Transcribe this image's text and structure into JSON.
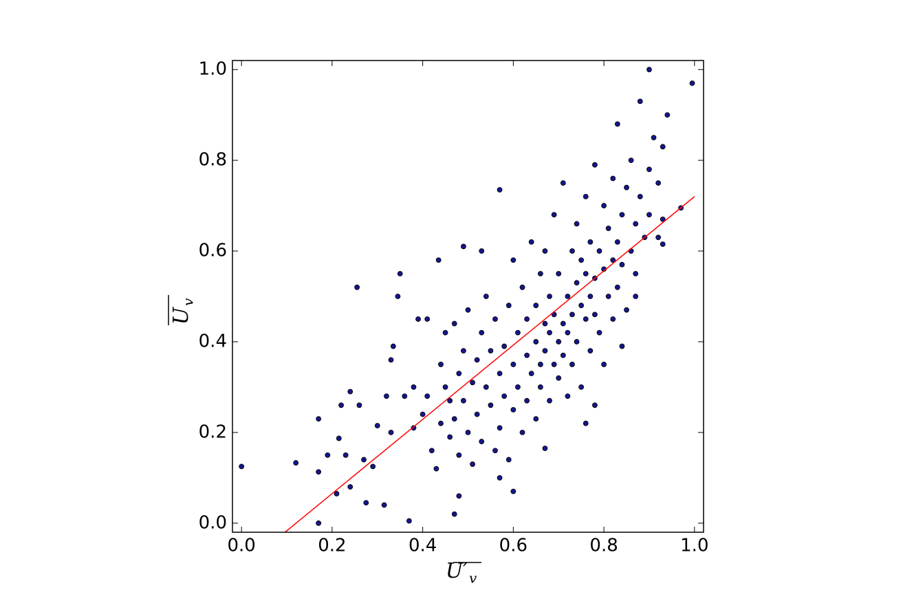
{
  "chart_data": {
    "type": "scatter",
    "xlabel": [
      "U′",
      "v"
    ],
    "ylabel": [
      "U",
      "v"
    ],
    "xlim": [
      -0.02,
      1.02
    ],
    "ylim": [
      -0.02,
      1.02
    ],
    "xticks": [
      {
        "value": 0,
        "label": "0.0"
      },
      0.2,
      0.4,
      0.6,
      0.8,
      {
        "value": 1,
        "label": "1.0"
      }
    ],
    "yticks": [
      {
        "value": 0,
        "label": "0.0"
      },
      0.2,
      0.4,
      0.6,
      0.8,
      {
        "value": 1,
        "label": "1.0"
      }
    ],
    "color": "#16168a",
    "x": [
      0.0,
      0.12,
      0.17,
      0.17,
      0.17,
      0.19,
      0.21,
      0.215,
      0.22,
      0.23,
      0.24,
      0.24,
      0.255,
      0.26,
      0.27,
      0.275,
      0.29,
      0.3,
      0.315,
      0.32,
      0.33,
      0.33,
      0.335,
      0.345,
      0.35,
      0.37,
      0.38,
      0.39,
      0.41,
      0.435,
      0.47,
      0.48,
      0.49,
      0.53,
      0.57,
      0.9,
      0.995,
      0.88,
      0.94,
      0.97,
      0.93,
      0.6,
      0.57,
      0.67,
      0.76,
      0.78,
      0.84,
      0.87,
      0.36,
      0.38,
      0.4,
      0.41,
      0.42,
      0.43,
      0.44,
      0.44,
      0.45,
      0.45,
      0.46,
      0.46,
      0.47,
      0.47,
      0.48,
      0.48,
      0.49,
      0.49,
      0.5,
      0.5,
      0.51,
      0.51,
      0.52,
      0.52,
      0.53,
      0.53,
      0.54,
      0.54,
      0.55,
      0.55,
      0.56,
      0.56,
      0.57,
      0.57,
      0.58,
      0.58,
      0.59,
      0.59,
      0.6,
      0.6,
      0.6,
      0.61,
      0.61,
      0.62,
      0.62,
      0.63,
      0.63,
      0.63,
      0.64,
      0.64,
      0.65,
      0.65,
      0.65,
      0.66,
      0.66,
      0.66,
      0.67,
      0.67,
      0.67,
      0.68,
      0.68,
      0.68,
      0.69,
      0.69,
      0.69,
      0.7,
      0.7,
      0.7,
      0.71,
      0.71,
      0.71,
      0.72,
      0.72,
      0.72,
      0.73,
      0.73,
      0.73,
      0.74,
      0.74,
      0.74,
      0.75,
      0.75,
      0.75,
      0.76,
      0.76,
      0.76,
      0.77,
      0.77,
      0.77,
      0.78,
      0.78,
      0.78,
      0.79,
      0.79,
      0.8,
      0.8,
      0.8,
      0.81,
      0.81,
      0.82,
      0.82,
      0.82,
      0.83,
      0.83,
      0.83,
      0.84,
      0.84,
      0.85,
      0.85,
      0.86,
      0.86,
      0.87,
      0.87,
      0.88,
      0.89,
      0.9,
      0.9,
      0.91,
      0.92,
      0.92,
      0.93,
      0.93
    ],
    "y": [
      0.125,
      0.133,
      0.0,
      0.113,
      0.23,
      0.15,
      0.065,
      0.187,
      0.26,
      0.15,
      0.08,
      0.29,
      0.52,
      0.26,
      0.14,
      0.045,
      0.125,
      0.215,
      0.04,
      0.28,
      0.2,
      0.36,
      0.39,
      0.5,
      0.55,
      0.005,
      0.21,
      0.45,
      0.45,
      0.58,
      0.02,
      0.06,
      0.61,
      0.6,
      0.735,
      1.0,
      0.97,
      0.93,
      0.9,
      0.695,
      0.615,
      0.07,
      0.1,
      0.165,
      0.22,
      0.26,
      0.39,
      0.5,
      0.28,
      0.3,
      0.24,
      0.28,
      0.16,
      0.12,
      0.22,
      0.35,
      0.3,
      0.42,
      0.19,
      0.27,
      0.23,
      0.44,
      0.33,
      0.15,
      0.38,
      0.27,
      0.2,
      0.47,
      0.13,
      0.31,
      0.36,
      0.24,
      0.42,
      0.18,
      0.3,
      0.5,
      0.26,
      0.38,
      0.16,
      0.45,
      0.33,
      0.21,
      0.39,
      0.28,
      0.48,
      0.14,
      0.35,
      0.25,
      0.58,
      0.42,
      0.3,
      0.2,
      0.52,
      0.37,
      0.45,
      0.27,
      0.62,
      0.33,
      0.4,
      0.48,
      0.23,
      0.35,
      0.55,
      0.3,
      0.44,
      0.38,
      0.6,
      0.27,
      0.42,
      0.5,
      0.35,
      0.46,
      0.68,
      0.4,
      0.32,
      0.55,
      0.44,
      0.37,
      0.75,
      0.5,
      0.28,
      0.42,
      0.6,
      0.46,
      0.35,
      0.53,
      0.4,
      0.66,
      0.48,
      0.3,
      0.58,
      0.45,
      0.55,
      0.72,
      0.5,
      0.38,
      0.62,
      0.54,
      0.46,
      0.79,
      0.6,
      0.42,
      0.56,
      0.7,
      0.35,
      0.5,
      0.65,
      0.58,
      0.45,
      0.76,
      0.62,
      0.52,
      0.88,
      0.68,
      0.57,
      0.47,
      0.74,
      0.6,
      0.8,
      0.66,
      0.55,
      0.72,
      0.63,
      0.78,
      0.68,
      0.85,
      0.63,
      0.75,
      0.83,
      0.67
    ],
    "fit": {
      "color": "red",
      "x": [
        0.096,
        1.0
      ],
      "y": [
        -0.02,
        0.72
      ]
    }
  }
}
